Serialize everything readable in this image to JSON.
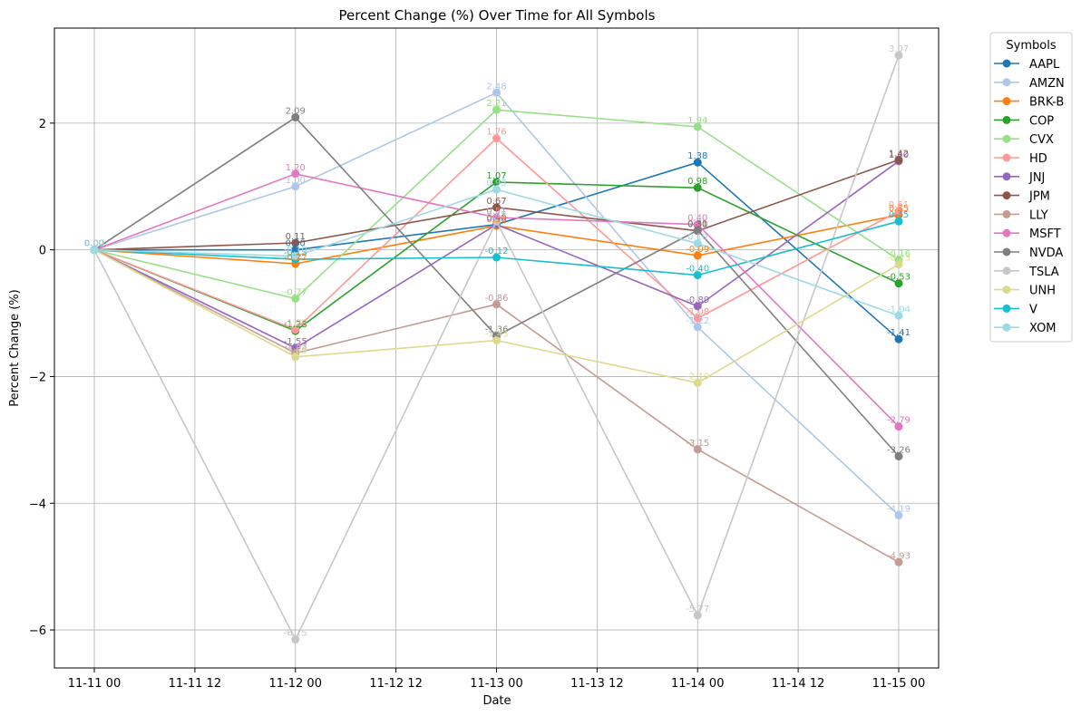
{
  "chart_data": {
    "type": "line",
    "title": "Percent Change (%) Over Time for All Symbols",
    "xlabel": "Date",
    "ylabel": "Percent Change (%)",
    "x": [
      "11-11 00",
      "11-12 00",
      "11-13 00",
      "11-14 00",
      "11-15 00"
    ],
    "x_ticks": [
      "11-11 00",
      "11-11 12",
      "11-12 00",
      "11-12 12",
      "11-13 00",
      "11-13 12",
      "11-14 00",
      "11-14 12",
      "11-15 00"
    ],
    "y_ticks": [
      "−6",
      "−4",
      "−2",
      "0",
      "2"
    ],
    "ylim": [
      -6.6,
      3.5
    ],
    "grid": true,
    "legend": {
      "title": "Symbols",
      "placement": "outside-right"
    },
    "series": [
      {
        "name": "AAPL",
        "color": "#1f77b4",
        "values": [
          0.0,
          0.0,
          0.4,
          1.38,
          -1.41
        ]
      },
      {
        "name": "AMZN",
        "color": "#aec7e8",
        "values": [
          0.0,
          1.0,
          2.48,
          -1.22,
          -4.19
        ]
      },
      {
        "name": "BRK-B",
        "color": "#ff7f0e",
        "values": [
          0.0,
          -0.22,
          0.38,
          -0.09,
          0.55
        ]
      },
      {
        "name": "COP",
        "color": "#2ca02c",
        "values": [
          0.0,
          -1.28,
          1.07,
          0.98,
          -0.53
        ]
      },
      {
        "name": "CVX",
        "color": "#98df8a",
        "values": [
          0.0,
          -0.77,
          2.21,
          1.94,
          -0.16
        ]
      },
      {
        "name": "HD",
        "color": "#ff9896",
        "values": [
          0.0,
          -1.26,
          1.76,
          -1.08,
          0.61
        ]
      },
      {
        "name": "JNJ",
        "color": "#9467bd",
        "values": [
          0.0,
          -1.55,
          0.4,
          -0.89,
          1.4
        ]
      },
      {
        "name": "JPM",
        "color": "#8c564b",
        "values": [
          0.0,
          0.11,
          0.67,
          0.3,
          1.42
        ]
      },
      {
        "name": "LLY",
        "color": "#c49c94",
        "values": [
          0.0,
          -1.63,
          -0.86,
          -3.15,
          -4.93
        ]
      },
      {
        "name": "MSFT",
        "color": "#e377c2",
        "values": [
          0.0,
          1.2,
          0.51,
          0.4,
          -2.79
        ]
      },
      {
        "name": "NVDA",
        "color": "#7f7f7f",
        "values": [
          0.0,
          2.09,
          -1.36,
          0.31,
          -3.26
        ]
      },
      {
        "name": "TSLA",
        "color": "#c7c7c7",
        "values": [
          0.0,
          -6.15,
          0.45,
          -5.77,
          3.07
        ]
      },
      {
        "name": "UNH",
        "color": "#dbdb8d",
        "values": [
          0.0,
          -1.69,
          -1.43,
          -2.1,
          -0.23
        ]
      },
      {
        "name": "V",
        "color": "#17becf",
        "values": [
          0.0,
          -0.15,
          -0.12,
          -0.4,
          0.45
        ]
      },
      {
        "name": "XOM",
        "color": "#9edae5",
        "values": [
          0.0,
          -0.1,
          0.95,
          0.1,
          -1.04
        ]
      }
    ]
  }
}
